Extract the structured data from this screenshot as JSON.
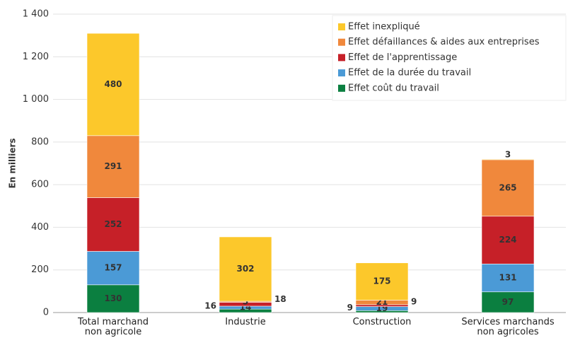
{
  "chart_data": {
    "type": "stacked_bar",
    "y_label": "En milliers",
    "categories": [
      "Total marchand non agricole",
      "Industrie",
      "Construction",
      "Services marchands non agricoles"
    ],
    "series": [
      {
        "name": "Effet coût du travail",
        "color": "#0b7f40",
        "values": [
          130,
          16,
          9,
          97
        ]
      },
      {
        "name": "Effet de la durée du travail",
        "color": "#4b9ad6",
        "values": [
          157,
          14,
          19,
          131
        ]
      },
      {
        "name": "Effet de l'apprentissage",
        "color": "#c62028",
        "values": [
          252,
          18,
          9,
          224
        ]
      },
      {
        "name": "Effet défaillances & aides aux entreprises",
        "color": "#f0883c",
        "values": [
          291,
          5,
          21,
          265
        ]
      },
      {
        "name": "Effet inexpliqué",
        "color": "#fcc82b",
        "values": [
          480,
          302,
          175,
          3
        ]
      }
    ],
    "ylim": [
      0,
      1400
    ],
    "yticks": [
      0,
      200,
      400,
      600,
      800,
      {
        "value": 1000,
        "label": "1 000"
      },
      {
        "value": 1200,
        "label": "1 200"
      },
      {
        "value": 1400,
        "label": "1 400"
      }
    ],
    "grid": true,
    "legend": "upper right"
  }
}
